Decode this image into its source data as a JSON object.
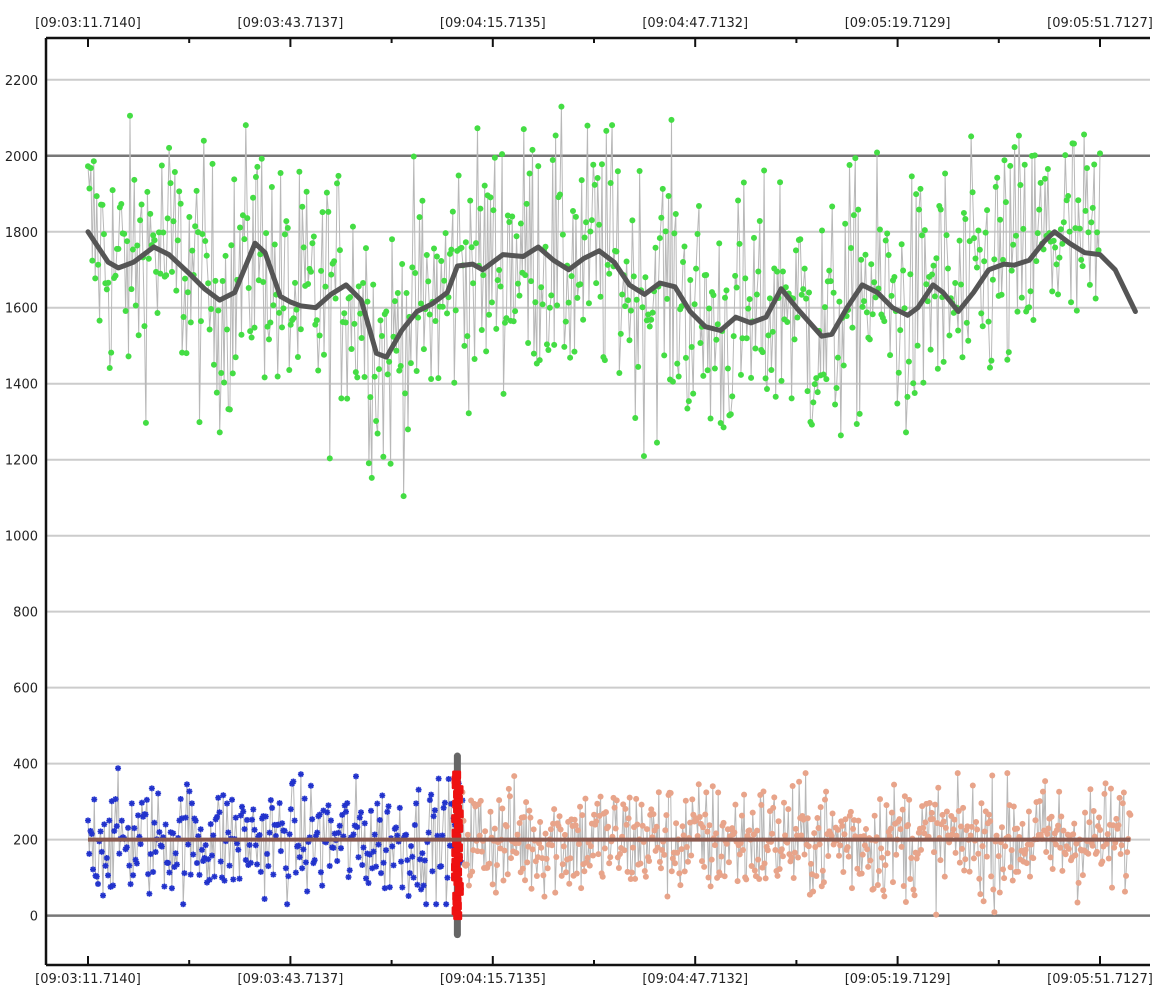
{
  "chart_data": {
    "type": "scatter",
    "x_axis": {
      "tick_labels": [
        "[09:03:11.7140]",
        "[09:03:43.7137]",
        "[09:04:15.7135]",
        "[09:04:47.7132]",
        "[09:05:19.7129]",
        "[09:05:51.7127]"
      ],
      "ticks_per_label": 2
    },
    "y_axis": {
      "ticks": [
        0,
        200,
        400,
        600,
        800,
        1000,
        1200,
        1400,
        1600,
        1800,
        2000,
        2200
      ],
      "major_lines": [
        0,
        2000
      ],
      "ylim": [
        -130,
        2310
      ]
    },
    "colors": {
      "green": "#44dd44",
      "blue": "#2233cc",
      "salmon": "#e8a48a",
      "red": "#ee1111",
      "stem": "#b8b8b8",
      "smooth_line": "#555555",
      "baseline": "#8a5a50",
      "cursor": "#666666",
      "grid": "#cccccc",
      "major_grid": "#777777"
    },
    "series": [
      {
        "key": "green",
        "points": 700,
        "x_range": [
          0,
          1
        ],
        "y_range": [
          898,
          2210
        ],
        "marker": "circle",
        "baseline": null,
        "smooth_curve": [
          [
            0.0,
            1800
          ],
          [
            0.02,
            1720
          ],
          [
            0.03,
            1705
          ],
          [
            0.045,
            1720
          ],
          [
            0.065,
            1760
          ],
          [
            0.08,
            1740
          ],
          [
            0.1,
            1690
          ],
          [
            0.115,
            1650
          ],
          [
            0.13,
            1620
          ],
          [
            0.145,
            1640
          ],
          [
            0.165,
            1770
          ],
          [
            0.175,
            1745
          ],
          [
            0.19,
            1630
          ],
          [
            0.2,
            1615
          ],
          [
            0.21,
            1605
          ],
          [
            0.225,
            1600
          ],
          [
            0.24,
            1635
          ],
          [
            0.255,
            1660
          ],
          [
            0.27,
            1620
          ],
          [
            0.285,
            1480
          ],
          [
            0.295,
            1470
          ],
          [
            0.31,
            1540
          ],
          [
            0.325,
            1590
          ],
          [
            0.34,
            1610
          ],
          [
            0.355,
            1640
          ],
          [
            0.365,
            1710
          ],
          [
            0.38,
            1715
          ],
          [
            0.39,
            1700
          ],
          [
            0.41,
            1740
          ],
          [
            0.43,
            1735
          ],
          [
            0.445,
            1760
          ],
          [
            0.46,
            1725
          ],
          [
            0.475,
            1700
          ],
          [
            0.49,
            1730
          ],
          [
            0.505,
            1750
          ],
          [
            0.52,
            1720
          ],
          [
            0.535,
            1660
          ],
          [
            0.55,
            1635
          ],
          [
            0.565,
            1665
          ],
          [
            0.58,
            1655
          ],
          [
            0.595,
            1590
          ],
          [
            0.61,
            1550
          ],
          [
            0.625,
            1540
          ],
          [
            0.64,
            1575
          ],
          [
            0.655,
            1560
          ],
          [
            0.67,
            1575
          ],
          [
            0.685,
            1650
          ],
          [
            0.7,
            1600
          ],
          [
            0.715,
            1555
          ],
          [
            0.725,
            1525
          ],
          [
            0.735,
            1530
          ],
          [
            0.75,
            1600
          ],
          [
            0.765,
            1660
          ],
          [
            0.78,
            1640
          ],
          [
            0.795,
            1600
          ],
          [
            0.81,
            1580
          ],
          [
            0.82,
            1600
          ],
          [
            0.835,
            1660
          ],
          [
            0.845,
            1640
          ],
          [
            0.86,
            1590
          ],
          [
            0.875,
            1640
          ],
          [
            0.89,
            1700
          ],
          [
            0.905,
            1715
          ],
          [
            0.915,
            1712
          ],
          [
            0.93,
            1725
          ],
          [
            0.945,
            1775
          ],
          [
            0.955,
            1800
          ],
          [
            0.97,
            1770
          ],
          [
            0.985,
            1745
          ],
          [
            1.0,
            1740
          ],
          [
            1.015,
            1700
          ],
          [
            1.035,
            1590
          ]
        ]
      },
      {
        "key": "blue",
        "points": 300,
        "x_range": [
          0,
          0.37
        ],
        "y_range": [
          30,
          420
        ],
        "marker": "star",
        "baseline": 200
      },
      {
        "key": "red",
        "points": 30,
        "x_range": [
          0.364,
          0.366
        ],
        "y_range": [
          0,
          370
        ],
        "marker": "square",
        "baseline": null
      },
      {
        "key": "salmon",
        "points": 620,
        "x_range": [
          0.37,
          1.03
        ],
        "y_range": [
          -10,
          375
        ],
        "marker": "circle",
        "baseline": 200
      }
    ],
    "cursor": {
      "x": 0.365,
      "y_from": -50,
      "y_to": 420
    }
  }
}
